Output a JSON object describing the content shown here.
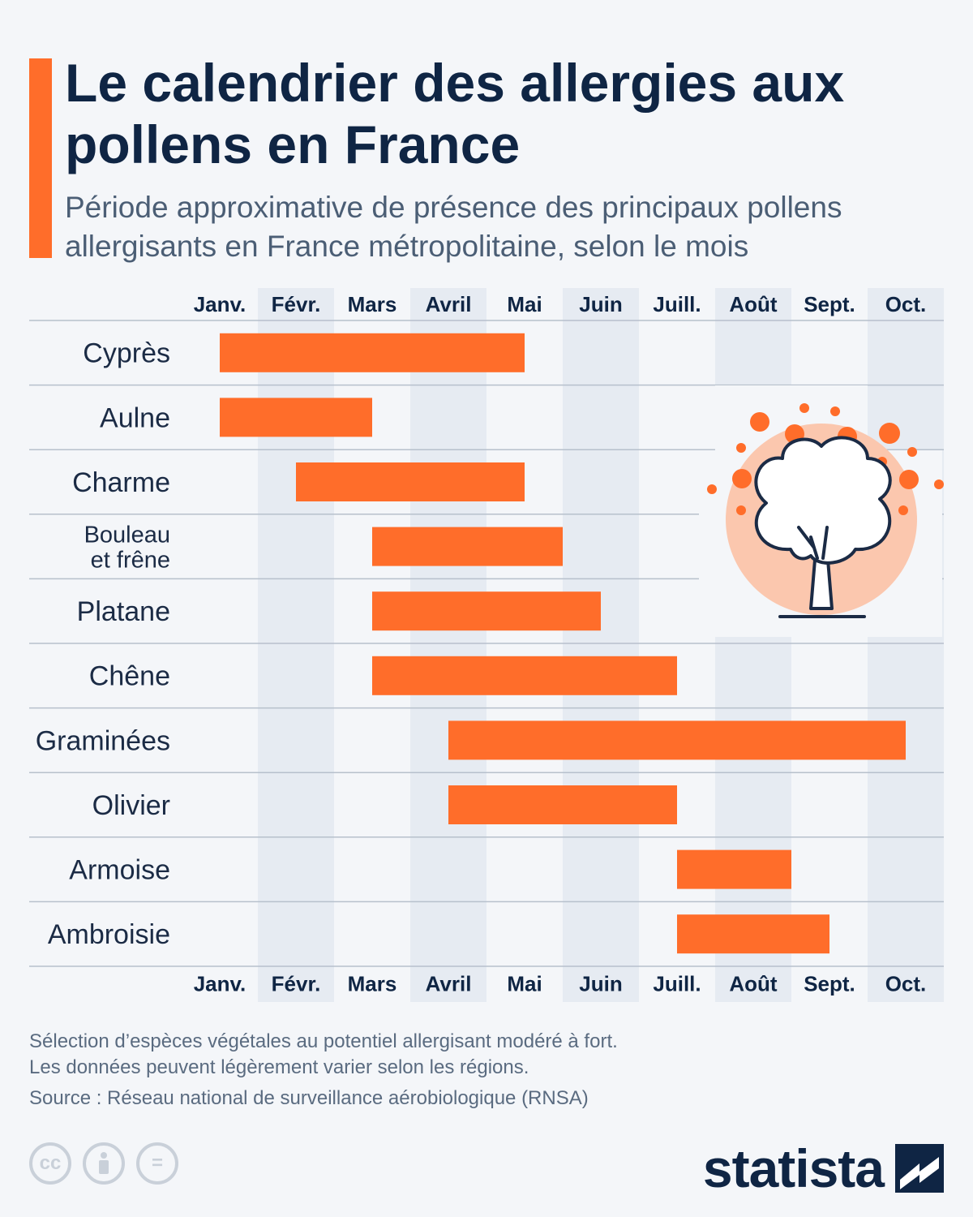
{
  "header": {
    "title": "Le calendrier des allergies aux pollens en France",
    "subtitle": "Période approximative de présence des principaux pollens allergisants en France métropolitaine, selon le mois"
  },
  "colors": {
    "accent": "#ff6d2a",
    "shade": "#e6ebf2",
    "text": "#0f2544",
    "muted": "#4b5e75"
  },
  "chart_data": {
    "type": "gantt",
    "title": "",
    "xlabel": "",
    "ylabel": "",
    "months": [
      "Janv.",
      "Févr.",
      "Mars",
      "Avril",
      "Mai",
      "Juin",
      "Juill.",
      "Août",
      "Sept.",
      "Oct."
    ],
    "month_axis_positions": "top-and-bottom",
    "alternating_month_shading": true,
    "series": [
      {
        "label": "Cyprès",
        "start": 1,
        "end": 5
      },
      {
        "label": "Aulne",
        "start": 1,
        "end": 3
      },
      {
        "label": "Charme",
        "start": 2,
        "end": 5
      },
      {
        "label": "Bouleau et frêne",
        "label_lines": [
          "Bouleau",
          "et frêne"
        ],
        "start": 3,
        "end": 5.5
      },
      {
        "label": "Platane",
        "start": 3,
        "end": 6
      },
      {
        "label": "Chêne",
        "start": 3,
        "end": 7
      },
      {
        "label": "Graminées",
        "start": 4,
        "end": 10
      },
      {
        "label": "Olivier",
        "start": 4,
        "end": 7
      },
      {
        "label": "Armoise",
        "start": 7,
        "end": 8.5
      },
      {
        "label": "Ambroisie",
        "start": 7,
        "end": 9
      }
    ],
    "bar_color": "#ff6d2a"
  },
  "illustration": {
    "icon": "tree-pollen-icon"
  },
  "footer": {
    "note_1": "Sélection d’espèces végétales au potentiel allergisant modéré à fort.",
    "note_2": "Les données peuvent légèrement varier selon les régions.",
    "source": "Source : Réseau national de surveillance aérobiologique (RNSA)",
    "license_icons": [
      "cc-icon",
      "by-icon",
      "nd-icon"
    ],
    "cc_label": "cc",
    "nd_label": "=",
    "brand": "statista"
  }
}
